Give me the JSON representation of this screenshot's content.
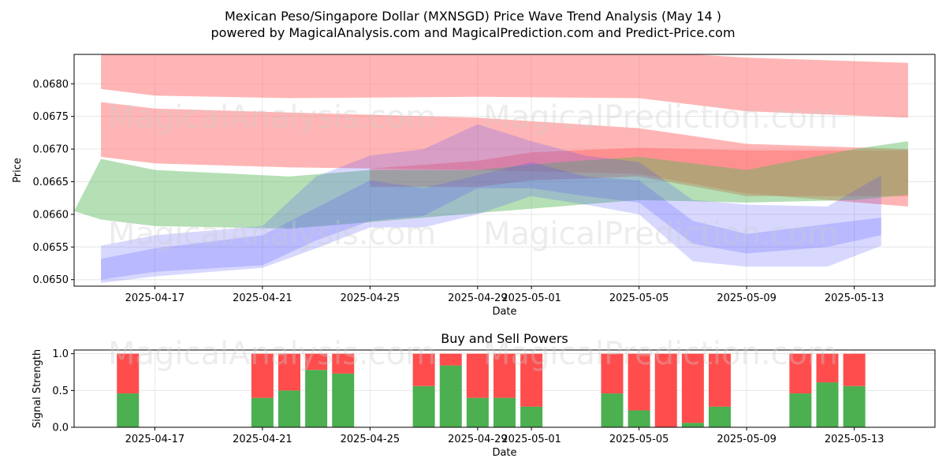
{
  "page": {
    "title_line1": "Mexican Peso/Singapore Dollar (MXNSGD) Price Wave Trend Analysis (May 14 )",
    "title_line2": "powered by MagicalAnalysis.com and MagicalPrediction.com and Predict-Price.com",
    "watermark_left": "MagicalAnalysis.com",
    "watermark_right": "MagicalPrediction.com"
  },
  "colors": {
    "red_band": "#ff6b6b",
    "green_band": "#5cb85c",
    "blue_band": "#4d4dff",
    "buy": "#4caf50",
    "sell": "#ff4d4d",
    "grid": "#e6e6e6"
  },
  "chart_data": [
    {
      "type": "area",
      "title": "",
      "xlabel": "Date",
      "ylabel": "Price",
      "xlim": [
        "2025-04-14",
        "2025-05-16"
      ],
      "ylim": [
        0.0649,
        0.06845
      ],
      "xticks": [
        "2025-04-17",
        "2025-04-21",
        "2025-04-25",
        "2025-04-29",
        "2025-05-01",
        "2025-05-05",
        "2025-05-09",
        "2025-05-13"
      ],
      "yticks": [
        0.065,
        0.0655,
        0.066,
        0.0665,
        0.067,
        0.0675,
        0.068
      ],
      "grid": true,
      "bands": [
        {
          "color": "red",
          "x": [
            "2025-04-15",
            "2025-04-17",
            "2025-04-22",
            "2025-04-29",
            "2025-05-05",
            "2025-05-09",
            "2025-05-15"
          ],
          "upper": [
            0.0685,
            0.0685,
            0.0685,
            0.0685,
            0.0685,
            0.0684,
            0.06832
          ],
          "lower": [
            0.06792,
            0.06782,
            0.06778,
            0.0678,
            0.06778,
            0.06758,
            0.06748
          ]
        },
        {
          "color": "red",
          "x": [
            "2025-04-15",
            "2025-04-17",
            "2025-04-22",
            "2025-04-29",
            "2025-05-05",
            "2025-05-09",
            "2025-05-15"
          ],
          "upper": [
            0.06772,
            0.06762,
            0.06756,
            0.06748,
            0.06732,
            0.06708,
            0.067
          ],
          "lower": [
            0.06688,
            0.06678,
            0.06672,
            0.06668,
            0.06662,
            0.06632,
            0.06612
          ]
        },
        {
          "color": "red",
          "x": [
            "2025-04-25",
            "2025-04-29",
            "2025-05-01",
            "2025-05-05",
            "2025-05-09",
            "2025-05-15"
          ],
          "upper": [
            0.0667,
            0.06682,
            0.06695,
            0.06702,
            0.06698,
            0.06698
          ],
          "lower": [
            0.06642,
            0.06642,
            0.06652,
            0.06658,
            0.06628,
            0.06628
          ]
        },
        {
          "color": "green",
          "x": [
            "2025-04-14",
            "2025-04-15",
            "2025-04-17",
            "2025-04-22",
            "2025-04-25",
            "2025-04-29",
            "2025-05-02",
            "2025-05-05",
            "2025-05-09",
            "2025-05-13",
            "2025-05-15"
          ],
          "upper": [
            0.06605,
            0.06685,
            0.06668,
            0.06658,
            0.06668,
            0.06668,
            0.0668,
            0.06688,
            0.06668,
            0.067,
            0.06712
          ],
          "lower": [
            0.06605,
            0.06592,
            0.06582,
            0.06578,
            0.06588,
            0.06602,
            0.06612,
            0.06622,
            0.06618,
            0.06622,
            0.0663
          ]
        },
        {
          "color": "blue",
          "x": [
            "2025-04-15",
            "2025-04-17",
            "2025-04-21",
            "2025-04-23",
            "2025-04-25",
            "2025-04-27",
            "2025-04-29",
            "2025-05-01",
            "2025-05-03",
            "2025-05-05",
            "2025-05-07",
            "2025-05-09",
            "2025-05-12",
            "2025-05-14"
          ],
          "upper": [
            0.06552,
            0.06568,
            0.06582,
            0.06658,
            0.0669,
            0.067,
            0.06738,
            0.06712,
            0.0669,
            0.0668,
            0.06622,
            0.06615,
            0.06612,
            0.0666
          ],
          "lower": [
            0.065,
            0.06512,
            0.06522,
            0.0656,
            0.0659,
            0.06598,
            0.0664,
            0.0664,
            0.06628,
            0.06618,
            0.06555,
            0.0654,
            0.0655,
            0.06568
          ]
        },
        {
          "color": "blue",
          "x": [
            "2025-04-15",
            "2025-04-17",
            "2025-04-21",
            "2025-04-23",
            "2025-04-25",
            "2025-04-27",
            "2025-04-29",
            "2025-05-01",
            "2025-05-03",
            "2025-05-05",
            "2025-05-07",
            "2025-05-09",
            "2025-05-12",
            "2025-05-14"
          ],
          "upper": [
            0.06532,
            0.06548,
            0.06568,
            0.0661,
            0.06652,
            0.0664,
            0.0666,
            0.0668,
            0.06658,
            0.06652,
            0.0659,
            0.0657,
            0.06585,
            0.06595
          ],
          "lower": [
            0.06495,
            0.06505,
            0.06518,
            0.06548,
            0.0658,
            0.0658,
            0.066,
            0.06628,
            0.06615,
            0.066,
            0.06528,
            0.0652,
            0.0652,
            0.06552
          ]
        }
      ]
    },
    {
      "type": "bar",
      "title": "Buy and Sell Powers",
      "xlabel": "Date",
      "ylabel": "Signal Strength",
      "xlim": [
        "2025-04-14",
        "2025-05-16"
      ],
      "ylim": [
        0,
        1.05
      ],
      "xticks": [
        "2025-04-17",
        "2025-04-21",
        "2025-04-25",
        "2025-04-29",
        "2025-05-01",
        "2025-05-05",
        "2025-05-09",
        "2025-05-13"
      ],
      "yticks": [
        0.0,
        0.5,
        1.0
      ],
      "grid": true,
      "categories": [
        "2025-04-16",
        "2025-04-21",
        "2025-04-22",
        "2025-04-23",
        "2025-04-24",
        "2025-04-27",
        "2025-04-28",
        "2025-04-29",
        "2025-04-30",
        "2025-05-01",
        "2025-05-04",
        "2025-05-05",
        "2025-05-06",
        "2025-05-07",
        "2025-05-08",
        "2025-05-11",
        "2025-05-12",
        "2025-05-13"
      ],
      "series": [
        {
          "name": "Buy",
          "values": [
            0.46,
            0.4,
            0.5,
            0.78,
            0.73,
            0.56,
            0.84,
            0.4,
            0.4,
            0.28,
            0.46,
            0.23,
            0.0,
            0.06,
            0.28,
            0.46,
            0.61,
            0.56
          ]
        },
        {
          "name": "Sell",
          "values": [
            0.54,
            0.6,
            0.5,
            0.22,
            0.27,
            0.44,
            0.16,
            0.6,
            0.6,
            0.72,
            0.54,
            0.77,
            1.0,
            0.94,
            0.72,
            0.54,
            0.39,
            0.44
          ]
        }
      ]
    }
  ]
}
